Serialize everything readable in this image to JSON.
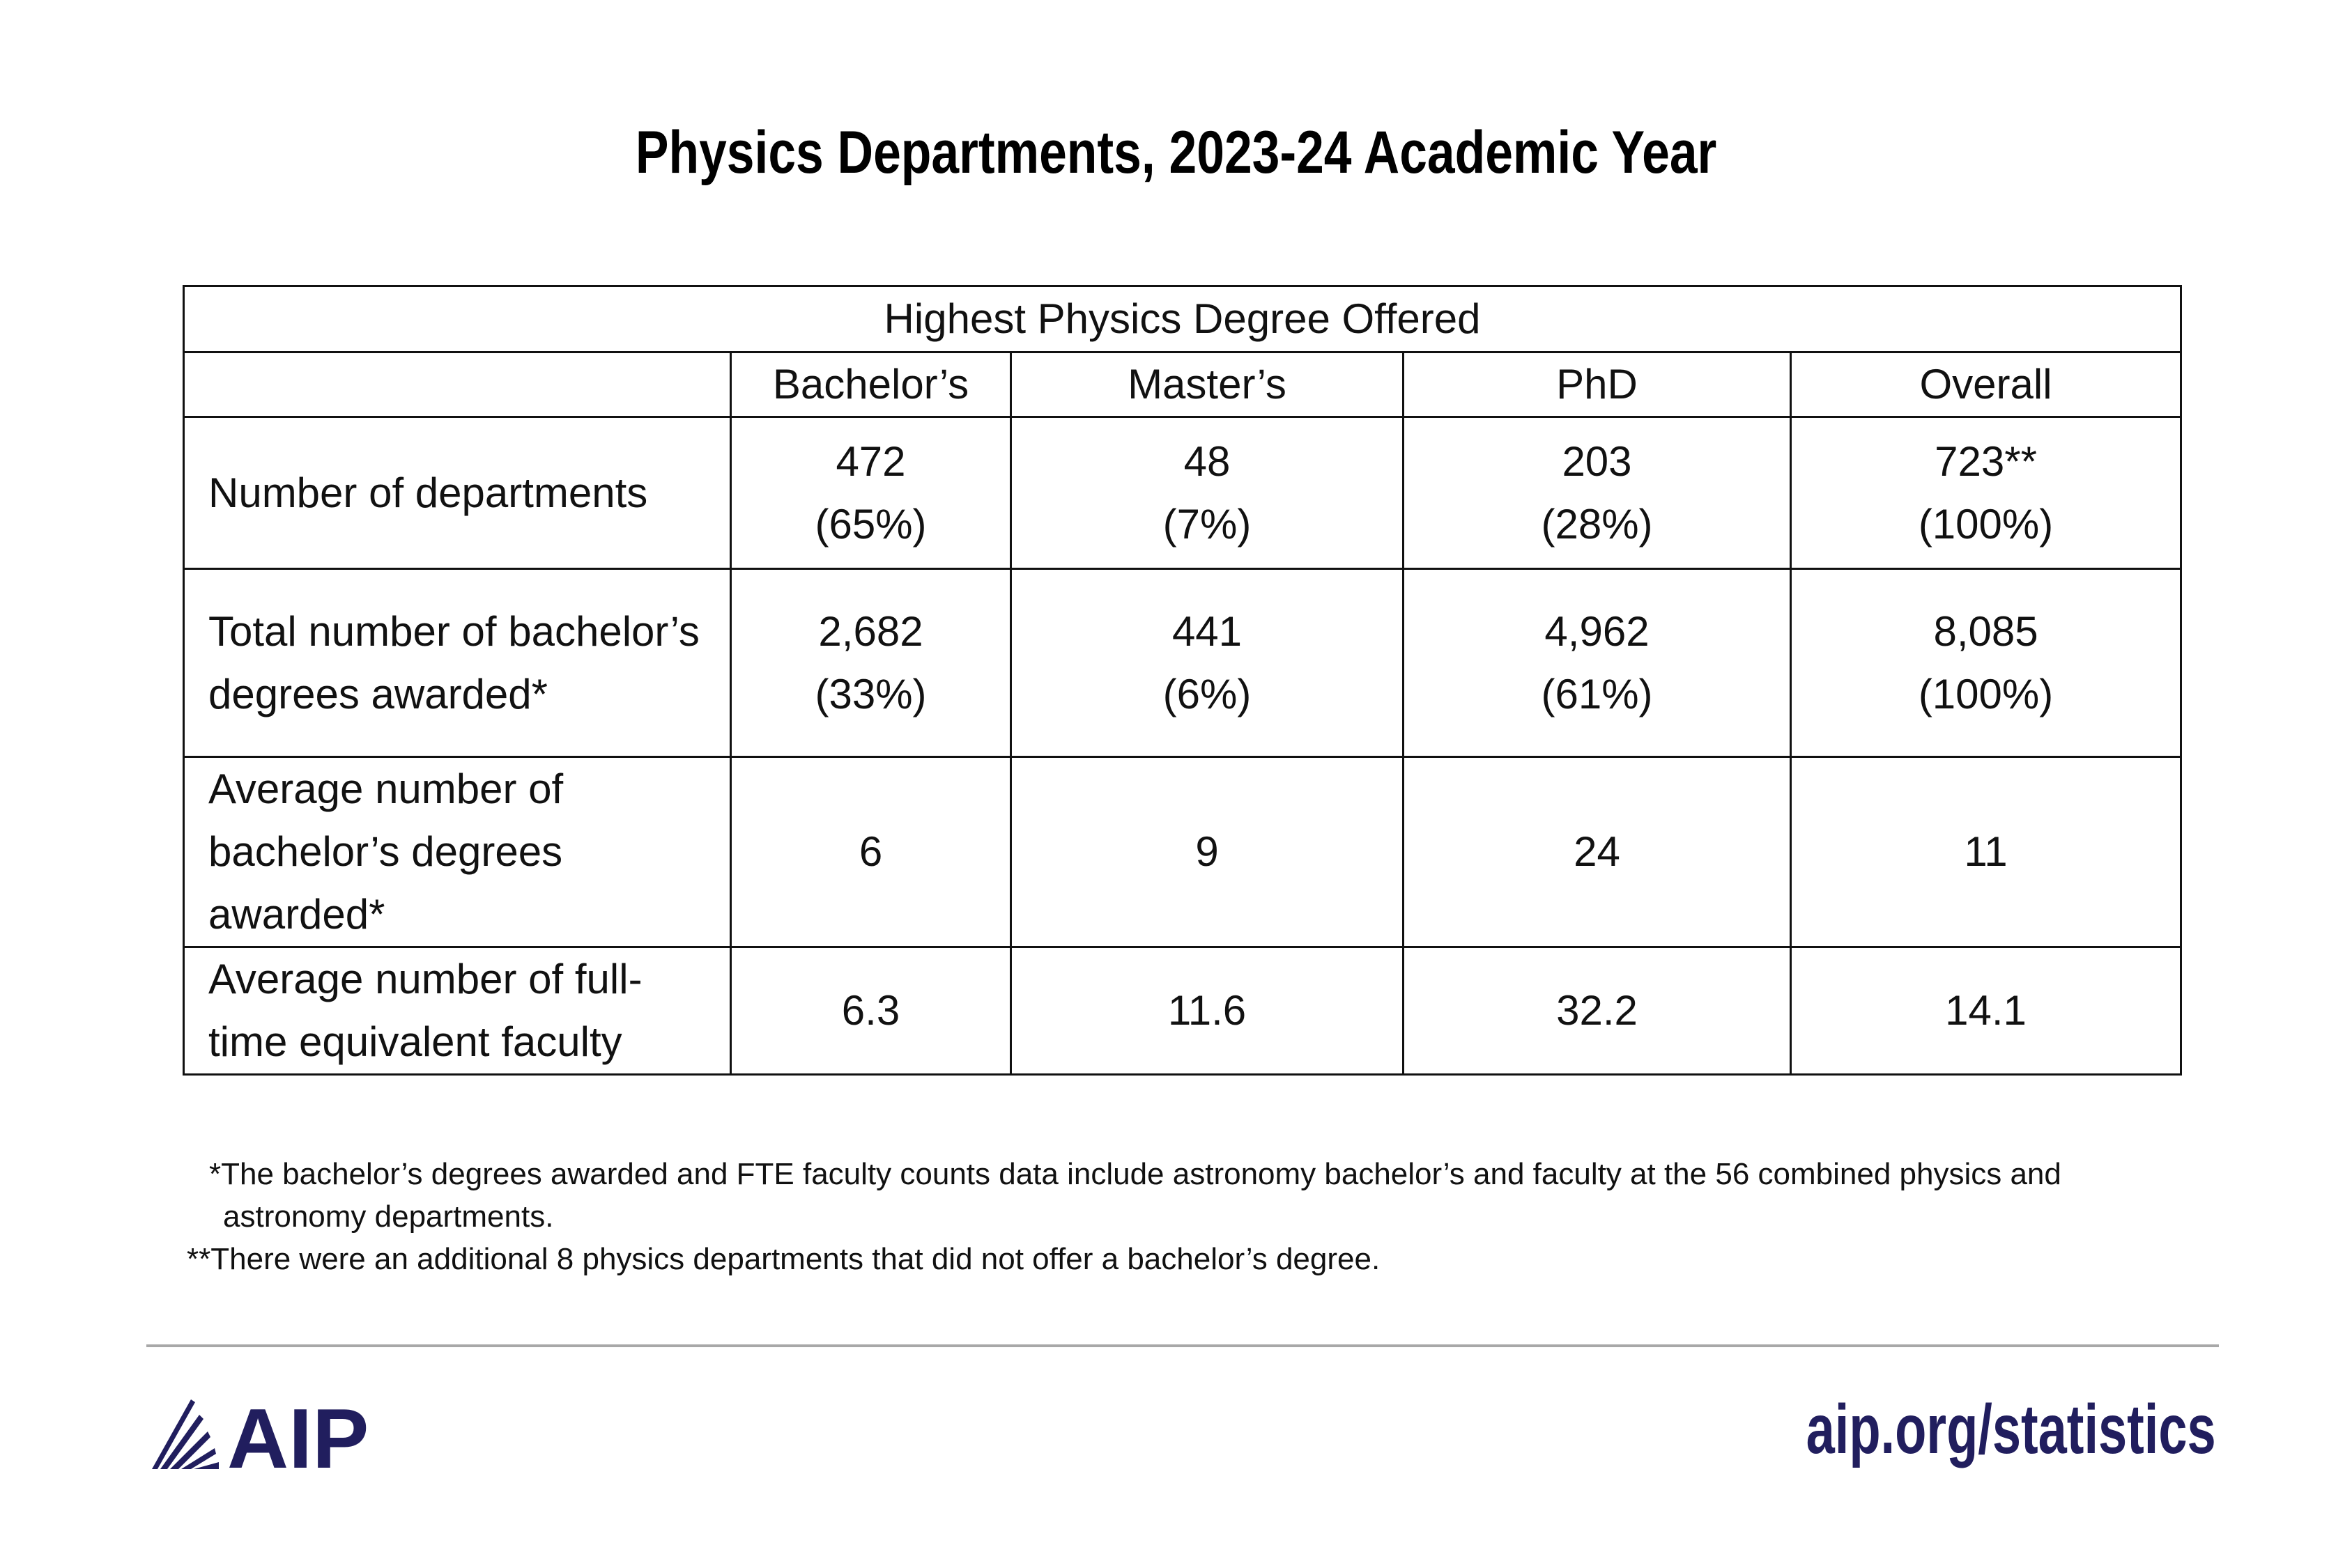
{
  "header": {
    "title": "Physics Departments, 2023-24 Academic Year"
  },
  "table": {
    "group_header": "Highest Physics Degree Offered",
    "columns": [
      "Bachelor’s",
      "Master’s",
      "PhD",
      "Overall"
    ],
    "rows": [
      {
        "label": "Number of departments",
        "cells": [
          [
            "472",
            "(65%)"
          ],
          [
            "48",
            "(7%)"
          ],
          [
            "203",
            "(28%)"
          ],
          [
            "723**",
            "(100%)"
          ]
        ]
      },
      {
        "label": "Total number of bachelor’s degrees awarded*",
        "cells": [
          [
            "2,682",
            "(33%)"
          ],
          [
            "441",
            "(6%)"
          ],
          [
            "4,962",
            "(61%)"
          ],
          [
            "8,085",
            "(100%)"
          ]
        ]
      },
      {
        "label": "Average number of bachelor’s degrees awarded*",
        "cells": [
          [
            "6"
          ],
          [
            "9"
          ],
          [
            "24"
          ],
          [
            "11"
          ]
        ]
      },
      {
        "label": "Average number of full-time equivalent faculty",
        "cells": [
          [
            "6.3"
          ],
          [
            "11.6"
          ],
          [
            "32.2"
          ],
          [
            "14.1"
          ]
        ]
      }
    ]
  },
  "footnotes": [
    "*The bachelor’s degrees awarded and FTE faculty counts data include astronomy bachelor’s and faculty at the 56 combined physics and astronomy departments.",
    "**There were an additional 8 physics departments that did not offer a bachelor’s degree."
  ],
  "footer": {
    "logo": "AIP",
    "url": "aip.org/statistics"
  }
}
